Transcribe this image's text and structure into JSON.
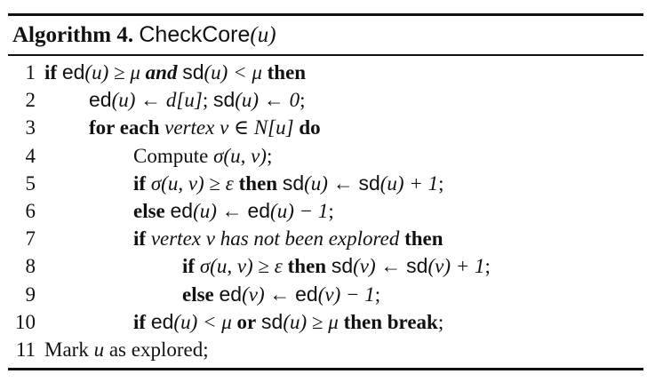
{
  "caption": {
    "label": "Algorithm 4.",
    "name": "CheckCore",
    "arg": "(u)"
  },
  "lines": [
    {
      "num": "1",
      "indent": 0,
      "parts": [
        {
          "t": "if",
          "s": "b"
        },
        {
          "t": " ",
          "s": ""
        },
        {
          "t": "ed",
          "s": "sf"
        },
        {
          "t": "(u) ≥ μ ",
          "s": "it"
        },
        {
          "t": "and",
          "s": "b it"
        },
        {
          "t": " ",
          "s": ""
        },
        {
          "t": "sd",
          "s": "sf"
        },
        {
          "t": "(u) < μ ",
          "s": "it"
        },
        {
          "t": "then",
          "s": "b"
        }
      ]
    },
    {
      "num": "2",
      "indent": 1,
      "parts": [
        {
          "t": "ed",
          "s": "sf"
        },
        {
          "t": "(u) ← d[u]",
          "s": "it"
        },
        {
          "t": "; ",
          "s": ""
        },
        {
          "t": "sd",
          "s": "sf"
        },
        {
          "t": "(u) ← 0",
          "s": "it"
        },
        {
          "t": ";",
          "s": ""
        }
      ]
    },
    {
      "num": "3",
      "indent": 1,
      "parts": [
        {
          "t": "for each",
          "s": "b"
        },
        {
          "t": " ",
          "s": ""
        },
        {
          "t": "vertex v ∈ N[u]",
          "s": "it"
        },
        {
          "t": " ",
          "s": ""
        },
        {
          "t": "do",
          "s": "b"
        }
      ]
    },
    {
      "num": "4",
      "indent": 2,
      "parts": [
        {
          "t": "Compute ",
          "s": ""
        },
        {
          "t": "σ(u, v)",
          "s": "it"
        },
        {
          "t": ";",
          "s": ""
        }
      ]
    },
    {
      "num": "5",
      "indent": 2,
      "parts": [
        {
          "t": "if",
          "s": "b"
        },
        {
          "t": " ",
          "s": ""
        },
        {
          "t": "σ(u, v) ≥ ε",
          "s": "it"
        },
        {
          "t": " ",
          "s": ""
        },
        {
          "t": "then",
          "s": "b"
        },
        {
          "t": " ",
          "s": ""
        },
        {
          "t": "sd",
          "s": "sf"
        },
        {
          "t": "(u) ← ",
          "s": "it"
        },
        {
          "t": "sd",
          "s": "sf"
        },
        {
          "t": "(u) + 1",
          "s": "it"
        },
        {
          "t": ";",
          "s": ""
        }
      ]
    },
    {
      "num": "6",
      "indent": 2,
      "parts": [
        {
          "t": "else",
          "s": "b"
        },
        {
          "t": " ",
          "s": ""
        },
        {
          "t": "ed",
          "s": "sf"
        },
        {
          "t": "(u) ← ",
          "s": "it"
        },
        {
          "t": "ed",
          "s": "sf"
        },
        {
          "t": "(u) − 1",
          "s": "it"
        },
        {
          "t": ";",
          "s": ""
        }
      ]
    },
    {
      "num": "7",
      "indent": 2,
      "parts": [
        {
          "t": "if",
          "s": "b"
        },
        {
          "t": " ",
          "s": ""
        },
        {
          "t": "vertex v has not been explored",
          "s": "it"
        },
        {
          "t": " ",
          "s": ""
        },
        {
          "t": "then",
          "s": "b"
        }
      ]
    },
    {
      "num": "8",
      "indent": 3,
      "parts": [
        {
          "t": "if",
          "s": "b"
        },
        {
          "t": " ",
          "s": ""
        },
        {
          "t": "σ(u, v) ≥ ε",
          "s": "it"
        },
        {
          "t": " ",
          "s": ""
        },
        {
          "t": "then",
          "s": "b"
        },
        {
          "t": " ",
          "s": ""
        },
        {
          "t": "sd",
          "s": "sf"
        },
        {
          "t": "(v) ← ",
          "s": "it"
        },
        {
          "t": "sd",
          "s": "sf"
        },
        {
          "t": "(v) + 1",
          "s": "it"
        },
        {
          "t": ";",
          "s": ""
        }
      ]
    },
    {
      "num": "9",
      "indent": 3,
      "parts": [
        {
          "t": "else",
          "s": "b"
        },
        {
          "t": " ",
          "s": ""
        },
        {
          "t": "ed",
          "s": "sf"
        },
        {
          "t": "(v) ← ",
          "s": "it"
        },
        {
          "t": "ed",
          "s": "sf"
        },
        {
          "t": "(v) − 1",
          "s": "it"
        },
        {
          "t": ";",
          "s": ""
        }
      ]
    },
    {
      "num": "10",
      "indent": 2,
      "parts": [
        {
          "t": "if",
          "s": "b"
        },
        {
          "t": " ",
          "s": ""
        },
        {
          "t": "ed",
          "s": "sf"
        },
        {
          "t": "(u) < μ ",
          "s": "it"
        },
        {
          "t": "or",
          "s": "b"
        },
        {
          "t": " ",
          "s": ""
        },
        {
          "t": "sd",
          "s": "sf"
        },
        {
          "t": "(u) ≥ μ ",
          "s": "it"
        },
        {
          "t": "then break",
          "s": "b"
        },
        {
          "t": ";",
          "s": ""
        }
      ]
    },
    {
      "num": "11",
      "indent": 0,
      "parts": [
        {
          "t": "Mark ",
          "s": ""
        },
        {
          "t": "u",
          "s": "it"
        },
        {
          "t": " as explored;",
          "s": ""
        }
      ]
    }
  ]
}
